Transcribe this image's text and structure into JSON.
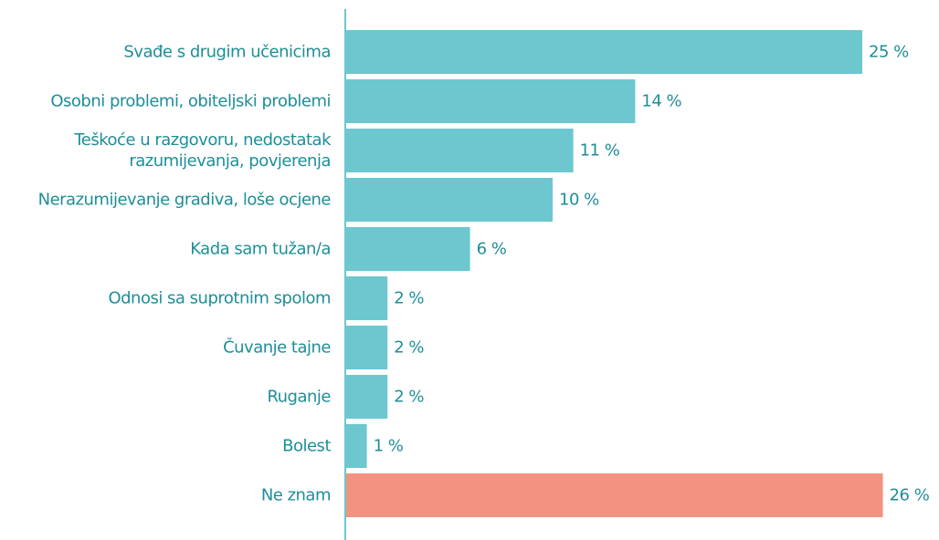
{
  "chart_data": {
    "type": "bar",
    "orientation": "horizontal",
    "categories": [
      "Svađe s drugim učenicima",
      "Osobni problemi, obiteljski problemi",
      "Teškoće u razgovoru, nedostatak\nrazumijevanja, povjerenja",
      "Nerazumijevanje gradiva, loše ocjene",
      "Kada sam tužan/a",
      "Odnosi sa suprotnim spolom",
      "Čuvanje tajne",
      "Ruganje",
      "Bolest",
      "Ne znam"
    ],
    "values": [
      25,
      14,
      11,
      10,
      6,
      2,
      2,
      2,
      1,
      26
    ],
    "value_labels": [
      "25 %",
      "14 %",
      "11 %",
      "10 %",
      "6 %",
      "2 %",
      "2 %",
      "2 %",
      "1 %",
      "26 %"
    ],
    "colors": [
      "#6cc7cf",
      "#6cc7cf",
      "#6cc7cf",
      "#6cc7cf",
      "#6cc7cf",
      "#6cc7cf",
      "#6cc7cf",
      "#6cc7cf",
      "#6cc7cf",
      "#f29382"
    ]
  }
}
